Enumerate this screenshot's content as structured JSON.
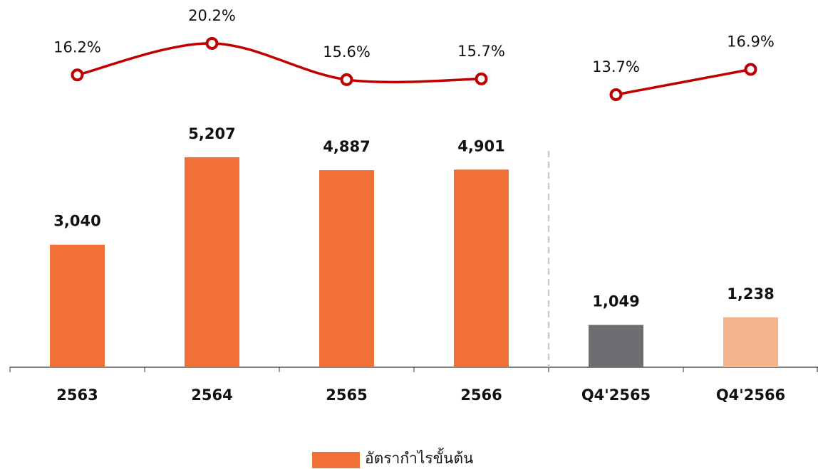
{
  "chart_data": {
    "type": "bar_line",
    "categories": [
      "2563",
      "2564",
      "2565",
      "2566",
      "Q4'2565",
      "Q4'2566"
    ],
    "group_break_before": 4,
    "series": [
      {
        "name": "อัตรากำไรขั้นต้น",
        "color": "#f07038",
        "colors": [
          "#f07038",
          "#f07038",
          "#f07038",
          "#f07038",
          "#6d6e71",
          "#f5b48c"
        ],
        "values": [
          3040,
          5207,
          4887,
          4901,
          1049,
          1238
        ],
        "value_labels": [
          "3,040",
          "5,207",
          "4,887",
          "4,901",
          "1,049",
          "1,238"
        ]
      },
      {
        "color": "#c00000",
        "axis": "y2",
        "values": [
          16.2,
          20.2,
          15.6,
          15.7,
          13.7,
          16.9
        ],
        "value_labels": [
          "16.2%",
          "20.2%",
          "15.6%",
          "15.7%",
          "13.7%",
          "16.9%"
        ]
      }
    ],
    "ylim": [
      0,
      6000
    ],
    "y2lim": [
      10,
      22
    ],
    "legend": "bottom"
  }
}
